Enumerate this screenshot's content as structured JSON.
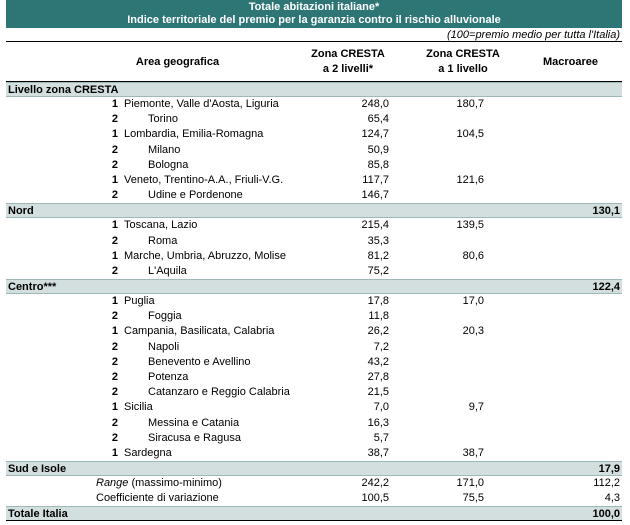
{
  "title": {
    "line1": "Totale abitazioni italiane*",
    "line2": "Indice territoriale del premio per la garanzia contro il rischio alluvionale"
  },
  "note": "(100=premio medio per tutta l'Italia)",
  "columns": {
    "area": "Area geografica",
    "z2_line1": "Zona CRESTA",
    "z2_line2": "a 2 livelli*",
    "z1_line1": "Zona CRESTA",
    "z1_line2": "a 1 livello",
    "macro": "Macroaree"
  },
  "sections": [
    {
      "label": "Livello zona CRESTA",
      "macro": ""
    },
    {
      "label": "Nord",
      "macro": "130,1"
    },
    {
      "label": "Centro***",
      "macro": "122,4"
    },
    {
      "label": "Sud e Isole",
      "macro": "17,9"
    }
  ],
  "nord_rows": [
    {
      "num": "1",
      "name": "Piemonte, Valle d'Aosta, Liguria",
      "z2": "248,0",
      "z1": "180,7"
    },
    {
      "num": "2",
      "name": "Torino",
      "z2": "65,4",
      "z1": ""
    },
    {
      "num": "1",
      "name": "Lombardia, Emilia-Romagna",
      "z2": "124,7",
      "z1": "104,5"
    },
    {
      "num": "2",
      "name": "Milano",
      "z2": "50,9",
      "z1": ""
    },
    {
      "num": "2",
      "name": "Bologna",
      "z2": "85,8",
      "z1": ""
    },
    {
      "num": "1",
      "name": "Veneto, Trentino-A.A., Friuli-V.G.",
      "z2": "117,7",
      "z1": "121,6"
    },
    {
      "num": "2",
      "name": "Udine e Pordenone",
      "z2": "146,7",
      "z1": ""
    }
  ],
  "centro_rows": [
    {
      "num": "1",
      "name": "Toscana, Lazio",
      "z2": "215,4",
      "z1": "139,5"
    },
    {
      "num": "2",
      "name": "Roma",
      "z2": "35,3",
      "z1": ""
    },
    {
      "num": "1",
      "name": "Marche, Umbria, Abruzzo, Molise",
      "z2": "81,2",
      "z1": "80,6"
    },
    {
      "num": "2",
      "name": "L'Aquila",
      "z2": "75,2",
      "z1": ""
    }
  ],
  "sud_rows": [
    {
      "num": "1",
      "name": "Puglia",
      "z2": "17,8",
      "z1": "17,0"
    },
    {
      "num": "2",
      "name": "Foggia",
      "z2": "11,8",
      "z1": ""
    },
    {
      "num": "1",
      "name": "Campania, Basilicata, Calabria",
      "z2": "26,2",
      "z1": "20,3"
    },
    {
      "num": "2",
      "name": "Napoli",
      "z2": "7,2",
      "z1": ""
    },
    {
      "num": "2",
      "name": "Benevento e Avellino",
      "z2": "43,2",
      "z1": ""
    },
    {
      "num": "2",
      "name": "Potenza",
      "z2": "27,8",
      "z1": ""
    },
    {
      "num": "2",
      "name": "Catanzaro e Reggio Calabria",
      "z2": "21,5",
      "z1": ""
    },
    {
      "num": "1",
      "name": "Sicilia",
      "z2": "7,0",
      "z1": "9,7"
    },
    {
      "num": "2",
      "name": "Messina e Catania",
      "z2": "16,3",
      "z1": ""
    },
    {
      "num": "2",
      "name": "Siracusa e Ragusa",
      "z2": "5,7",
      "z1": ""
    },
    {
      "num": "1",
      "name": "Sardegna",
      "z2": "38,7",
      "z1": "38,7"
    }
  ],
  "stats": {
    "range_italic": "Range",
    "range_rest": " (massimo-minimo)",
    "range": {
      "z2": "242,2",
      "z1": "171,0",
      "macro": "112,2"
    },
    "cv_label": "Coefficiente di variazione",
    "cv": {
      "z2": "100,5",
      "z1": "75,5",
      "macro": "4,3"
    }
  },
  "total": {
    "label": "Totale Italia",
    "macro": "100,0"
  },
  "colors": {
    "header_bg": "#2e7575",
    "section_bg": "#d3dfdf"
  }
}
